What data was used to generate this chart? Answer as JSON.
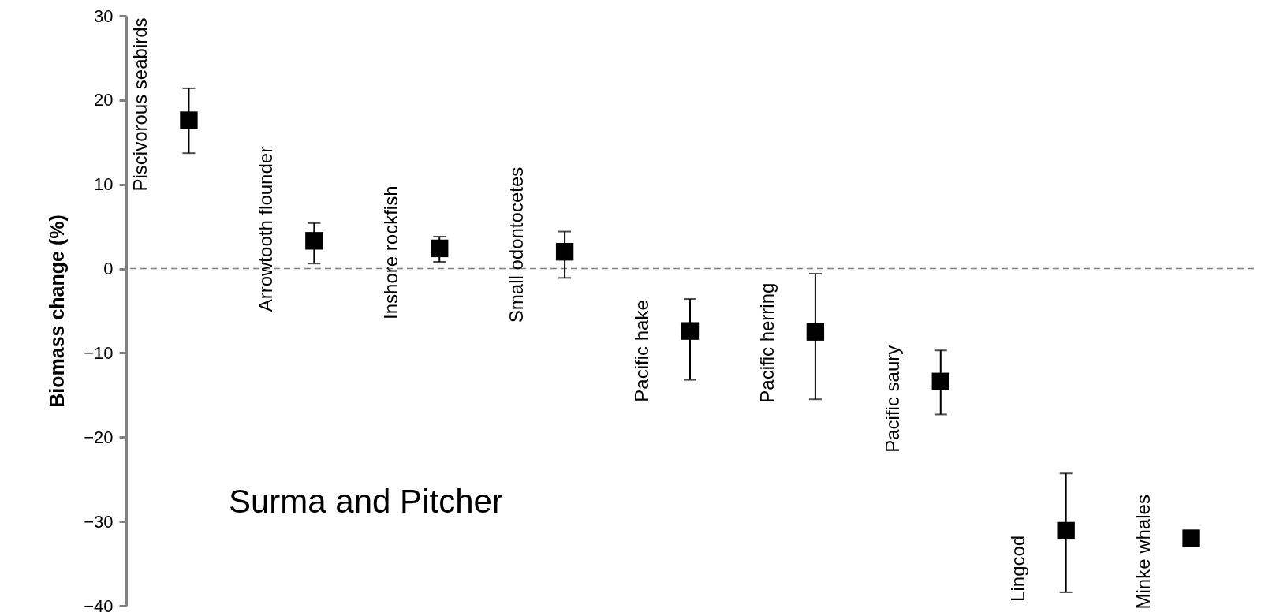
{
  "chart_data": {
    "type": "scatter",
    "ylabel": "Biomass change (%)",
    "categories": [
      "Piscivorous seabirds",
      "Arrowtooth flounder",
      "Inshore rockfish",
      "Small odontocetes",
      "Pacific hake",
      "Pacific herring",
      "Pacific saury",
      "Lingcod",
      "Minke whales"
    ],
    "values": [
      17.6,
      3.3,
      2.4,
      2.0,
      -7.4,
      -7.5,
      -13.4,
      -31.1,
      -32.0
    ],
    "errors": [
      [
        13.7,
        21.4
      ],
      [
        0.6,
        5.4
      ],
      [
        0.8,
        3.8
      ],
      [
        -1.1,
        4.4
      ],
      [
        -13.2,
        -3.6
      ],
      [
        -15.5,
        -0.6
      ],
      [
        -17.3,
        -9.7
      ],
      [
        -38.4,
        -24.3
      ],
      null
    ],
    "color": "#000000",
    "marker": "square",
    "ylim": [
      -40,
      30
    ],
    "yticks": [
      -40,
      -30,
      -20,
      -10,
      0,
      10,
      20,
      30
    ],
    "grid": false,
    "ref_lines": [
      {
        "axis": "y",
        "value": 0,
        "color": "#808080",
        "line_style": "dashed"
      }
    ],
    "annotations": [
      "Surma and Pitcher"
    ]
  }
}
